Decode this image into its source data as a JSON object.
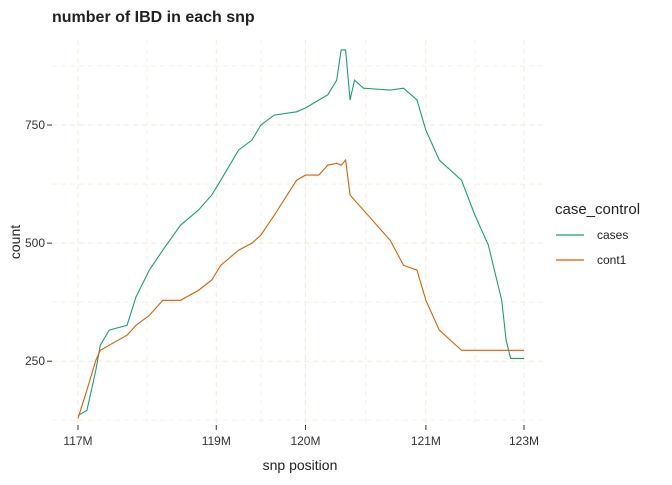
{
  "chart_data": {
    "type": "line",
    "title": "number of IBD in each snp",
    "x_label": "snp position",
    "y_label": "count",
    "legend_title": "case_control",
    "legend_position": "right",
    "grid": true,
    "xlim": [
      0,
      100
    ],
    "xticks": [
      {
        "value": 0,
        "label": "117M"
      },
      {
        "value": 31,
        "label": "119M"
      },
      {
        "value": 51,
        "label": "120M"
      },
      {
        "value": 78,
        "label": "121M"
      },
      {
        "value": 100,
        "label": "123M"
      }
    ],
    "ylim": [
      115,
      930
    ],
    "yticks": [
      250,
      500,
      750
    ],
    "x": [
      0,
      2,
      4,
      5,
      7,
      11,
      13,
      16,
      19,
      23,
      27,
      30,
      32,
      36,
      39,
      41,
      44,
      49,
      51,
      54,
      56,
      58,
      59,
      60,
      61,
      62,
      64,
      70,
      73,
      76,
      78,
      81,
      86,
      89,
      92,
      95,
      96,
      97,
      100
    ],
    "series": [
      {
        "name": "cases",
        "color": "#1b9e77",
        "values": [
          135,
          146,
          231,
          284,
          316,
          326,
          386,
          443,
          485,
          538,
          570,
          602,
          633,
          697,
          718,
          750,
          771,
          778,
          786,
          803,
          814,
          845,
          909,
          909,
          803,
          845,
          828,
          824,
          828,
          803,
          739,
          676,
          633,
          559,
          496,
          379,
          294,
          256,
          256
        ]
      },
      {
        "name": "cont1",
        "color": "#d95f02",
        "values": [
          129,
          189,
          252,
          273,
          284,
          305,
          326,
          347,
          379,
          379,
          400,
          422,
          453,
          485,
          500,
          517,
          559,
          633,
          644,
          644,
          665,
          669,
          665,
          676,
          602,
          591,
          570,
          506,
          453,
          443,
          379,
          316,
          273,
          273,
          273,
          273,
          273,
          273,
          273
        ]
      }
    ]
  }
}
